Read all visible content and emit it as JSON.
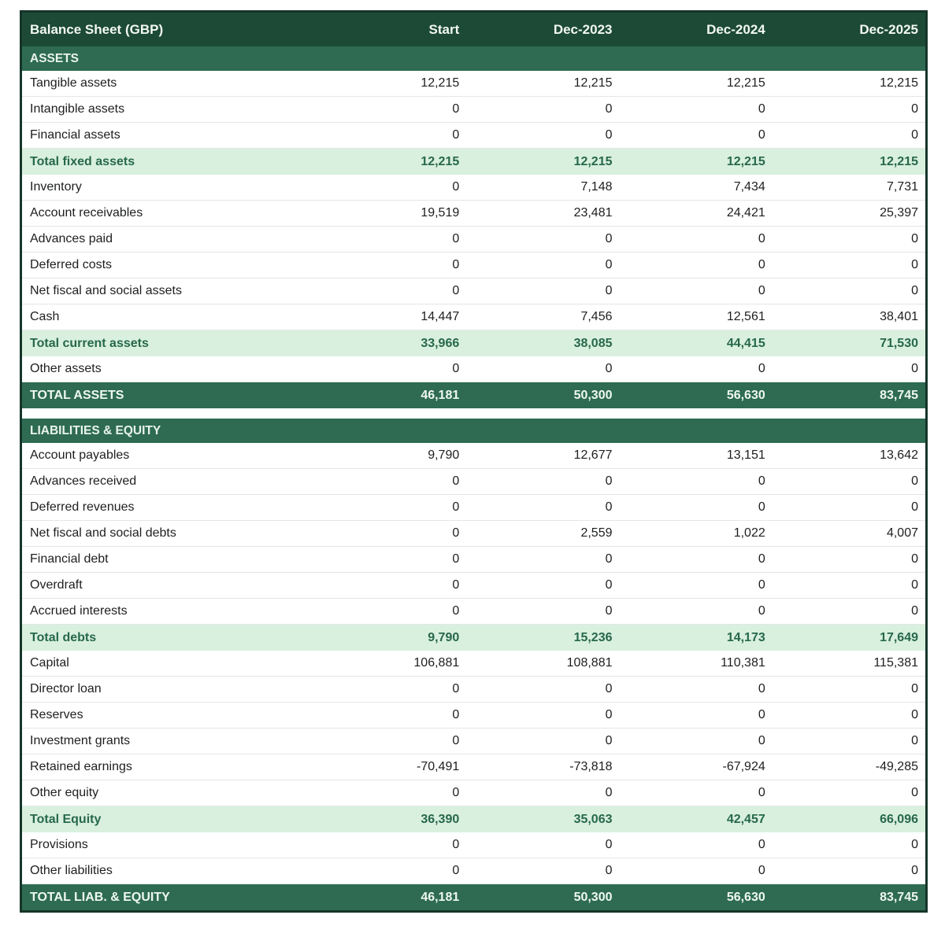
{
  "colors": {
    "header_bg": "#1d4a36",
    "section_bg": "#2e6b52",
    "subtotal_bg": "#d9f0de",
    "subtotal_text": "#27684a",
    "border_color": "#16352a",
    "header_text": "#f2f8f4"
  },
  "table": {
    "title": "Balance Sheet (GBP)",
    "columns": [
      "Start",
      "Dec-2023",
      "Dec-2024",
      "Dec-2025"
    ],
    "sections": [
      {
        "header": "ASSETS",
        "rows": [
          {
            "label": "Tangible assets",
            "style": "normal",
            "values": [
              "12,215",
              "12,215",
              "12,215",
              "12,215"
            ]
          },
          {
            "label": "Intangible assets",
            "style": "normal",
            "values": [
              "0",
              "0",
              "0",
              "0"
            ]
          },
          {
            "label": "Financial assets",
            "style": "normal",
            "values": [
              "0",
              "0",
              "0",
              "0"
            ]
          },
          {
            "label": "Total fixed assets",
            "style": "subtotal",
            "values": [
              "12,215",
              "12,215",
              "12,215",
              "12,215"
            ]
          },
          {
            "label": "Inventory",
            "style": "normal",
            "values": [
              "0",
              "7,148",
              "7,434",
              "7,731"
            ]
          },
          {
            "label": "Account receivables",
            "style": "normal",
            "values": [
              "19,519",
              "23,481",
              "24,421",
              "25,397"
            ]
          },
          {
            "label": "Advances paid",
            "style": "normal",
            "values": [
              "0",
              "0",
              "0",
              "0"
            ]
          },
          {
            "label": "Deferred costs",
            "style": "normal",
            "values": [
              "0",
              "0",
              "0",
              "0"
            ]
          },
          {
            "label": "Net fiscal and social assets",
            "style": "normal",
            "values": [
              "0",
              "0",
              "0",
              "0"
            ]
          },
          {
            "label": "Cash",
            "style": "normal",
            "values": [
              "14,447",
              "7,456",
              "12,561",
              "38,401"
            ]
          },
          {
            "label": "Total current assets",
            "style": "subtotal",
            "values": [
              "33,966",
              "38,085",
              "44,415",
              "71,530"
            ]
          },
          {
            "label": "Other assets",
            "style": "normal",
            "values": [
              "0",
              "0",
              "0",
              "0"
            ]
          },
          {
            "label": "TOTAL ASSETS",
            "style": "total",
            "values": [
              "46,181",
              "50,300",
              "56,630",
              "83,745"
            ]
          }
        ]
      },
      {
        "header": "LIABILITIES & EQUITY",
        "rows": [
          {
            "label": "Account payables",
            "style": "normal",
            "values": [
              "9,790",
              "12,677",
              "13,151",
              "13,642"
            ]
          },
          {
            "label": "Advances received",
            "style": "normal",
            "values": [
              "0",
              "0",
              "0",
              "0"
            ]
          },
          {
            "label": "Deferred revenues",
            "style": "normal",
            "values": [
              "0",
              "0",
              "0",
              "0"
            ]
          },
          {
            "label": "Net fiscal and social debts",
            "style": "normal",
            "values": [
              "0",
              "2,559",
              "1,022",
              "4,007"
            ]
          },
          {
            "label": "Financial debt",
            "style": "normal",
            "values": [
              "0",
              "0",
              "0",
              "0"
            ]
          },
          {
            "label": "Overdraft",
            "style": "normal",
            "values": [
              "0",
              "0",
              "0",
              "0"
            ]
          },
          {
            "label": "Accrued interests",
            "style": "normal",
            "values": [
              "0",
              "0",
              "0",
              "0"
            ]
          },
          {
            "label": "Total debts",
            "style": "subtotal",
            "values": [
              "9,790",
              "15,236",
              "14,173",
              "17,649"
            ]
          },
          {
            "label": "Capital",
            "style": "normal",
            "values": [
              "106,881",
              "108,881",
              "110,381",
              "115,381"
            ]
          },
          {
            "label": "Director loan",
            "style": "normal",
            "values": [
              "0",
              "0",
              "0",
              "0"
            ]
          },
          {
            "label": "Reserves",
            "style": "normal",
            "values": [
              "0",
              "0",
              "0",
              "0"
            ]
          },
          {
            "label": "Investment grants",
            "style": "normal",
            "values": [
              "0",
              "0",
              "0",
              "0"
            ]
          },
          {
            "label": "Retained earnings",
            "style": "normal",
            "values": [
              "-70,491",
              "-73,818",
              "-67,924",
              "-49,285"
            ]
          },
          {
            "label": "Other equity",
            "style": "normal",
            "values": [
              "0",
              "0",
              "0",
              "0"
            ]
          },
          {
            "label": "Total Equity",
            "style": "subtotal",
            "values": [
              "36,390",
              "35,063",
              "42,457",
              "66,096"
            ]
          },
          {
            "label": "Provisions",
            "style": "normal",
            "values": [
              "0",
              "0",
              "0",
              "0"
            ]
          },
          {
            "label": "Other liabilities",
            "style": "normal",
            "values": [
              "0",
              "0",
              "0",
              "0"
            ]
          },
          {
            "label": "TOTAL LIAB. & EQUITY",
            "style": "total",
            "values": [
              "46,181",
              "50,300",
              "56,630",
              "83,745"
            ]
          }
        ]
      }
    ]
  }
}
